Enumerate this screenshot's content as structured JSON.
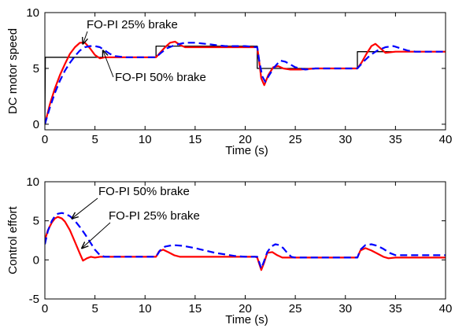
{
  "chart_data": [
    {
      "type": "line",
      "xlabel": "Time (s)",
      "ylabel": "DC motor speed",
      "xlim": [
        0,
        40
      ],
      "ylim": [
        -0.5,
        10
      ],
      "xticks": [
        0,
        5,
        10,
        15,
        20,
        25,
        30,
        35,
        40
      ],
      "yticks": [
        0,
        5,
        10
      ],
      "grid": false,
      "series": [
        {
          "key": "reference",
          "color": "#000000",
          "style": "solid",
          "x": [
            0,
            0.05,
            11.1,
            11.1,
            21.2,
            21.2,
            31.2,
            31.2,
            40
          ],
          "y": [
            0,
            6,
            6,
            7,
            7,
            5,
            5,
            6.5,
            6.5
          ]
        },
        {
          "key": "fo_pi_25",
          "color": "#ff0000",
          "style": "solid",
          "x": [
            0,
            0.5,
            1,
            1.5,
            2,
            2.5,
            3,
            3.5,
            4,
            4.5,
            5,
            5.5,
            6,
            7,
            8,
            9,
            10,
            11.1,
            11.5,
            12,
            12.5,
            13,
            13.5,
            14,
            15,
            17,
            19,
            21.2,
            21.4,
            21.6,
            21.9,
            22.3,
            22.8,
            23.3,
            23.8,
            24.5,
            25.5,
            27,
            29,
            31.2,
            31.6,
            32.1,
            32.6,
            33,
            33.5,
            34,
            35,
            37,
            40
          ],
          "y": [
            0,
            1.8,
            3.2,
            4.4,
            5.4,
            6.3,
            6.9,
            7.3,
            7.3,
            6.8,
            6.2,
            5.9,
            6.0,
            6.0,
            6.0,
            6.0,
            6.0,
            6.0,
            6.4,
            6.9,
            7.3,
            7.4,
            7.1,
            6.9,
            6.9,
            6.9,
            6.9,
            6.9,
            5.6,
            4.1,
            3.5,
            4.4,
            5.1,
            5.2,
            5.0,
            4.9,
            4.9,
            5.0,
            5.0,
            5.0,
            5.5,
            6.3,
            7.0,
            7.2,
            6.8,
            6.4,
            6.5,
            6.5,
            6.5
          ]
        },
        {
          "key": "fo_pi_50",
          "color": "#0000ff",
          "style": "dashed",
          "x": [
            0,
            0.5,
            1,
            1.5,
            2,
            2.5,
            3,
            3.5,
            4,
            4.5,
            5,
            5.5,
            6,
            6.5,
            7,
            8,
            9,
            10,
            11.1,
            11.6,
            12.2,
            13,
            14,
            15,
            16,
            17,
            18,
            19,
            20,
            21.2,
            21.4,
            21.7,
            22,
            22.4,
            22.9,
            23.5,
            24,
            25,
            26,
            27,
            29,
            31.2,
            31.8,
            32.5,
            33.2,
            34,
            34.8,
            35.5,
            36.2,
            37,
            40
          ],
          "y": [
            0,
            1.5,
            2.8,
            3.9,
            4.8,
            5.5,
            6.1,
            6.6,
            6.9,
            7.0,
            7.0,
            6.9,
            6.6,
            6.3,
            6.1,
            6.0,
            6.0,
            6.0,
            6.0,
            6.4,
            6.8,
            7.1,
            7.3,
            7.3,
            7.2,
            7.1,
            7.0,
            7.0,
            7.0,
            6.9,
            5.7,
            4.3,
            3.8,
            4.4,
            5.1,
            5.7,
            5.6,
            5.1,
            4.9,
            5.0,
            5.0,
            5.0,
            5.6,
            6.2,
            6.6,
            6.9,
            7.0,
            6.8,
            6.6,
            6.5,
            6.5
          ]
        }
      ],
      "annotations": [
        {
          "text": "FO-PI 25% brake",
          "target_x": 3.8,
          "target_y": 7.2
        },
        {
          "text": "FO-PI 50% brake",
          "target_x": 5.8,
          "target_y": 6.6
        }
      ]
    },
    {
      "type": "line",
      "xlabel": "Time (s)",
      "ylabel": "Control effort",
      "xlim": [
        0,
        40
      ],
      "ylim": [
        -5,
        10
      ],
      "xticks": [
        0,
        5,
        10,
        15,
        20,
        25,
        30,
        35,
        40
      ],
      "yticks": [
        -5,
        0,
        5,
        10
      ],
      "grid": false,
      "series": [
        {
          "key": "fo_pi_25",
          "color": "#ff0000",
          "style": "solid",
          "x": [
            0,
            0.3,
            0.7,
            1,
            1.3,
            1.7,
            2,
            2.5,
            3,
            3.5,
            3.8,
            4.2,
            4.6,
            5,
            5.5,
            6,
            7,
            8,
            9,
            10,
            11.1,
            11.4,
            11.8,
            12.3,
            12.9,
            13.5,
            14,
            15,
            17,
            19,
            21,
            21.2,
            21.4,
            21.6,
            21.9,
            22.2,
            22.7,
            23.2,
            23.7,
            24,
            25,
            26,
            27,
            29,
            31.2,
            31.5,
            32,
            32.6,
            33.2,
            33.8,
            34.3,
            35,
            37,
            40
          ],
          "y": [
            2.5,
            3.8,
            4.8,
            5.3,
            5.5,
            5.3,
            4.9,
            3.8,
            2.3,
            0.8,
            -0.1,
            0.2,
            0.4,
            0.3,
            0.4,
            0.4,
            0.4,
            0.4,
            0.4,
            0.4,
            0.4,
            1.1,
            1.3,
            1.0,
            0.6,
            0.4,
            0.4,
            0.4,
            0.4,
            0.4,
            0.4,
            0.3,
            -0.5,
            -1.3,
            -0.3,
            0.9,
            1.0,
            0.6,
            0.3,
            0.3,
            0.3,
            0.3,
            0.3,
            0.3,
            0.3,
            1.2,
            1.5,
            1.2,
            0.8,
            0.4,
            0.2,
            0.3,
            0.3,
            0.3
          ]
        },
        {
          "key": "fo_pi_50",
          "color": "#0000ff",
          "style": "dashed",
          "x": [
            0,
            0.3,
            0.7,
            1,
            1.3,
            1.7,
            2,
            2.5,
            3,
            3.5,
            4,
            4.5,
            5,
            5.5,
            6,
            7,
            8,
            9,
            10,
            11.1,
            11.5,
            12,
            12.8,
            13.8,
            15,
            16,
            17,
            18,
            19,
            20,
            21,
            21.2,
            21.4,
            21.6,
            21.9,
            22.2,
            22.6,
            23,
            23.4,
            23.8,
            24.2,
            24.6,
            25,
            26,
            27,
            29,
            31.2,
            31.5,
            32,
            32.6,
            33.2,
            33.8,
            34.4,
            35,
            36,
            38,
            40
          ],
          "y": [
            2.0,
            3.7,
            5.0,
            5.6,
            5.9,
            6.0,
            5.9,
            5.6,
            5.0,
            4.2,
            3.3,
            2.3,
            1.3,
            0.6,
            0.4,
            0.4,
            0.4,
            0.4,
            0.4,
            0.4,
            1.2,
            1.7,
            1.9,
            1.8,
            1.5,
            1.2,
            0.9,
            0.7,
            0.5,
            0.4,
            0.4,
            0.4,
            -0.3,
            -1.1,
            -0.1,
            1.0,
            1.7,
            2.0,
            1.9,
            1.5,
            0.9,
            0.4,
            0.3,
            0.3,
            0.3,
            0.3,
            0.3,
            1.3,
            1.9,
            2.0,
            1.8,
            1.4,
            0.9,
            0.6,
            0.6,
            0.6,
            0.6
          ]
        }
      ],
      "annotations": [
        {
          "text": "FO-PI 50% brake",
          "target_x": 2.7,
          "target_y": 5.3
        },
        {
          "text": "FO-PI 25% brake",
          "target_x": 3.7,
          "target_y": 1.5
        }
      ]
    }
  ]
}
